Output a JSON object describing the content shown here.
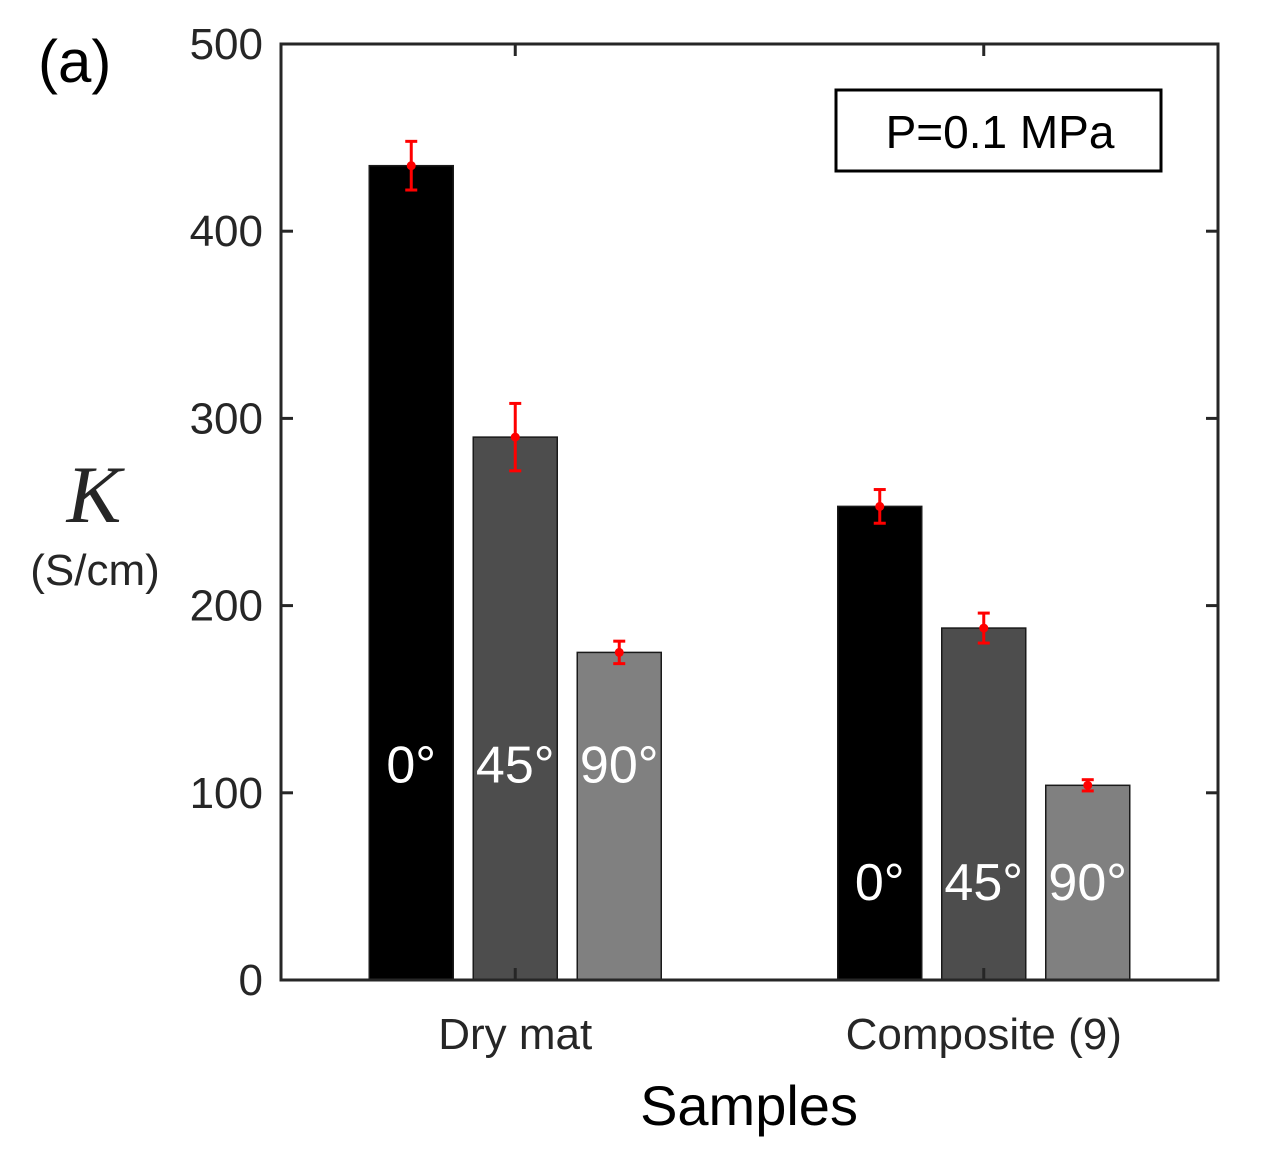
{
  "panel_label": "(a)",
  "chart_data": {
    "type": "bar",
    "categories": [
      "Dry mat",
      "Composite (9)"
    ],
    "series": [
      {
        "name": "0°",
        "values": [
          435,
          253
        ],
        "errors": [
          13,
          9
        ],
        "color": "#000000"
      },
      {
        "name": "45°",
        "values": [
          290,
          188
        ],
        "errors": [
          18,
          8
        ],
        "color": "#4d4d4d"
      },
      {
        "name": "90°",
        "values": [
          175,
          104
        ],
        "errors": [
          6,
          3
        ],
        "color": "#808080"
      }
    ],
    "bar_labels": [
      "0°",
      "45°",
      "90°"
    ],
    "error_bar_color": "#ff0000",
    "title": "",
    "xlabel": "Samples",
    "ylabel_symbol": "K",
    "ylabel_unit": "(S/cm)",
    "ylim": [
      0,
      500
    ],
    "yticks": [
      0,
      100,
      200,
      300,
      400,
      500
    ],
    "annotation": "P=0.1 MPa",
    "annotation_position": "top-right",
    "grid": false,
    "legend": "none"
  }
}
